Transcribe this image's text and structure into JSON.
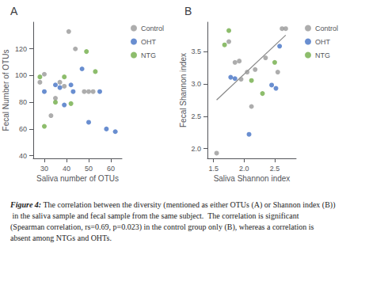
{
  "chart_data": [
    {
      "type": "scatter",
      "title": "A",
      "xlabel": "Saliva number of OTUs",
      "ylabel": "Fecal Number of OTUs",
      "xlim": [
        25,
        65
      ],
      "ylim": [
        38,
        140
      ],
      "xticks": [
        30,
        40,
        50,
        60
      ],
      "yticks": [
        40,
        60,
        80,
        100,
        120
      ],
      "grid": false,
      "legend": "right",
      "series": [
        {
          "name": "Control",
          "color": "#999999",
          "x": [
            28,
            30,
            33,
            35,
            37,
            39,
            41,
            44,
            48,
            50,
            52
          ],
          "values": [
            95,
            101,
            70,
            83,
            95,
            92,
            133,
            120,
            88,
            88,
            88
          ]
        },
        {
          "name": "OHT",
          "color": "#4472C4",
          "x": [
            30,
            35,
            37,
            39,
            42,
            43,
            47,
            50,
            55,
            58,
            62
          ],
          "values": [
            88,
            93,
            91,
            78,
            93,
            88,
            105,
            65,
            88,
            60,
            58
          ]
        },
        {
          "name": "NTG",
          "color": "#70AD47",
          "x": [
            28,
            30,
            35,
            39,
            42,
            49,
            53
          ],
          "values": [
            99,
            62,
            80,
            99,
            79,
            118,
            103
          ]
        }
      ]
    },
    {
      "type": "scatter",
      "title": "B",
      "xlabel": "Saliva Shannon index",
      "ylabel": "Fecal Shannon index",
      "xlim": [
        1.4,
        2.85
      ],
      "ylim": [
        1.85,
        3.95
      ],
      "xticks": [
        1.5,
        {
          "value": 2.0,
          "label": "2.0"
        },
        2.5
      ],
      "yticks": [
        {
          "value": 2.0,
          "label": "2.0"
        },
        2.5,
        {
          "value": 3.0,
          "label": "3.0"
        },
        3.5
      ],
      "grid": false,
      "legend": "right",
      "series": [
        {
          "name": "Control",
          "color": "#999999",
          "x": [
            1.55,
            1.75,
            1.85,
            1.92,
            1.95,
            2.05,
            2.12,
            2.18,
            2.35,
            2.55,
            2.62,
            2.68
          ],
          "values": [
            1.93,
            3.65,
            3.33,
            3.35,
            3.07,
            3.18,
            2.65,
            3.22,
            3.4,
            3.18,
            3.85,
            3.85
          ]
        },
        {
          "name": "OHT",
          "color": "#4472C4",
          "x": [
            1.78,
            1.85,
            2.08,
            2.45,
            2.52,
            2.58
          ],
          "values": [
            3.1,
            3.08,
            2.22,
            2.98,
            2.93,
            3.58
          ]
        },
        {
          "name": "NTG",
          "color": "#70AD47",
          "x": [
            1.68,
            1.75,
            2.12,
            2.3,
            2.5
          ],
          "values": [
            3.6,
            3.82,
            3.05,
            2.85,
            3.33
          ]
        },
        {
          "type": "line",
          "color": "#888888",
          "x": [
            1.55,
            2.68
          ],
          "values": [
            2.75,
            3.75
          ]
        }
      ]
    }
  ],
  "caption_title": "Figure 4:",
  "caption": " The correlation between the diversity (mentioned as either OTUs (A) or Shannon index (B)) in the saliva sample and fecal sample from the same subject.  The correlation is significant (Spearman correlation, rs=0.69, p=0.023) in the control group only (B), whereas a correlation is absent among NTGs and OHTs."
}
